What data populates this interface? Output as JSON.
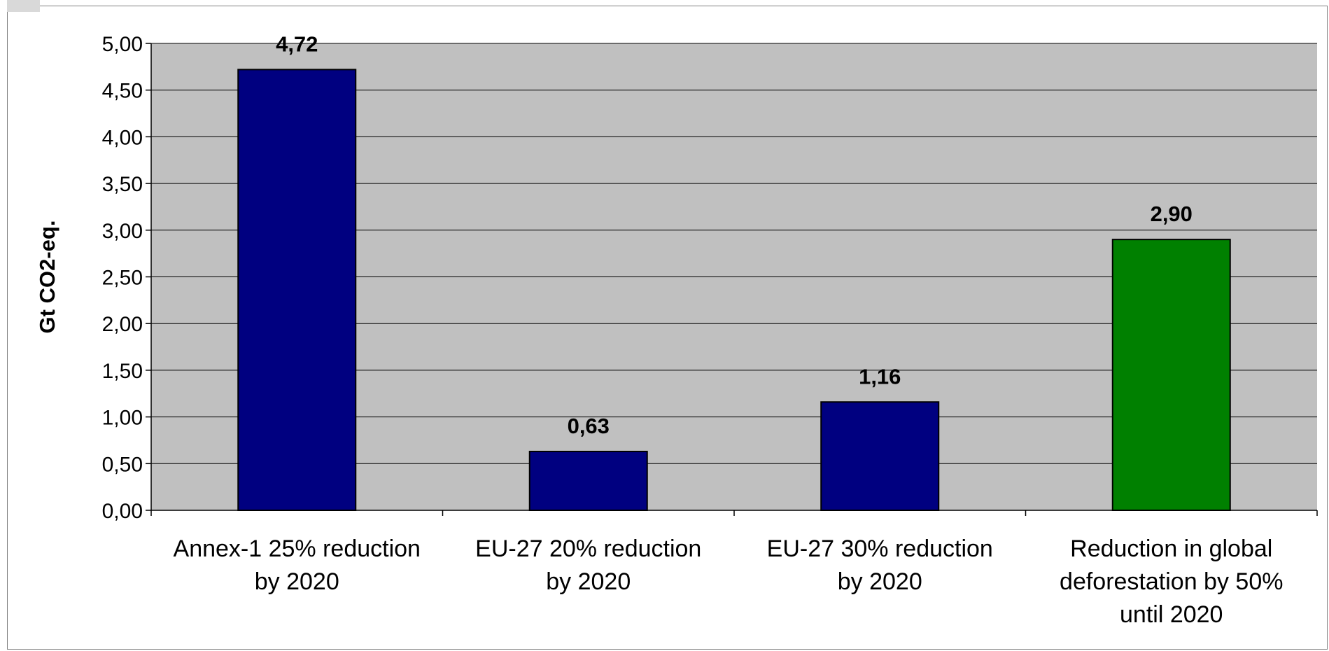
{
  "chart_data": {
    "type": "bar",
    "title": "",
    "xlabel": "",
    "ylabel": "Gt CO2-eq.",
    "ylim": [
      0,
      5
    ],
    "ytick_step": 0.5,
    "ytick_labels": [
      "0,00",
      "0,50",
      "1,00",
      "1,50",
      "2,00",
      "2,50",
      "3,00",
      "3,50",
      "4,00",
      "4,50",
      "5,00"
    ],
    "grid": true,
    "legend": "none",
    "plot_background": "#c0c0c0",
    "categories": [
      [
        "Annex-1 25% reduction",
        "by 2020"
      ],
      [
        "EU-27 20% reduction",
        "by 2020"
      ],
      [
        "EU-27 30% reduction",
        "by 2020"
      ],
      [
        "Reduction in global",
        "deforestation by 50%",
        "until 2020"
      ]
    ],
    "values": [
      4.72,
      0.63,
      1.16,
      2.9
    ],
    "data_labels": [
      "4,72",
      "0,63",
      "1,16",
      "2,90"
    ],
    "bar_colors": [
      "#000080",
      "#000080",
      "#000080",
      "#008000"
    ]
  }
}
